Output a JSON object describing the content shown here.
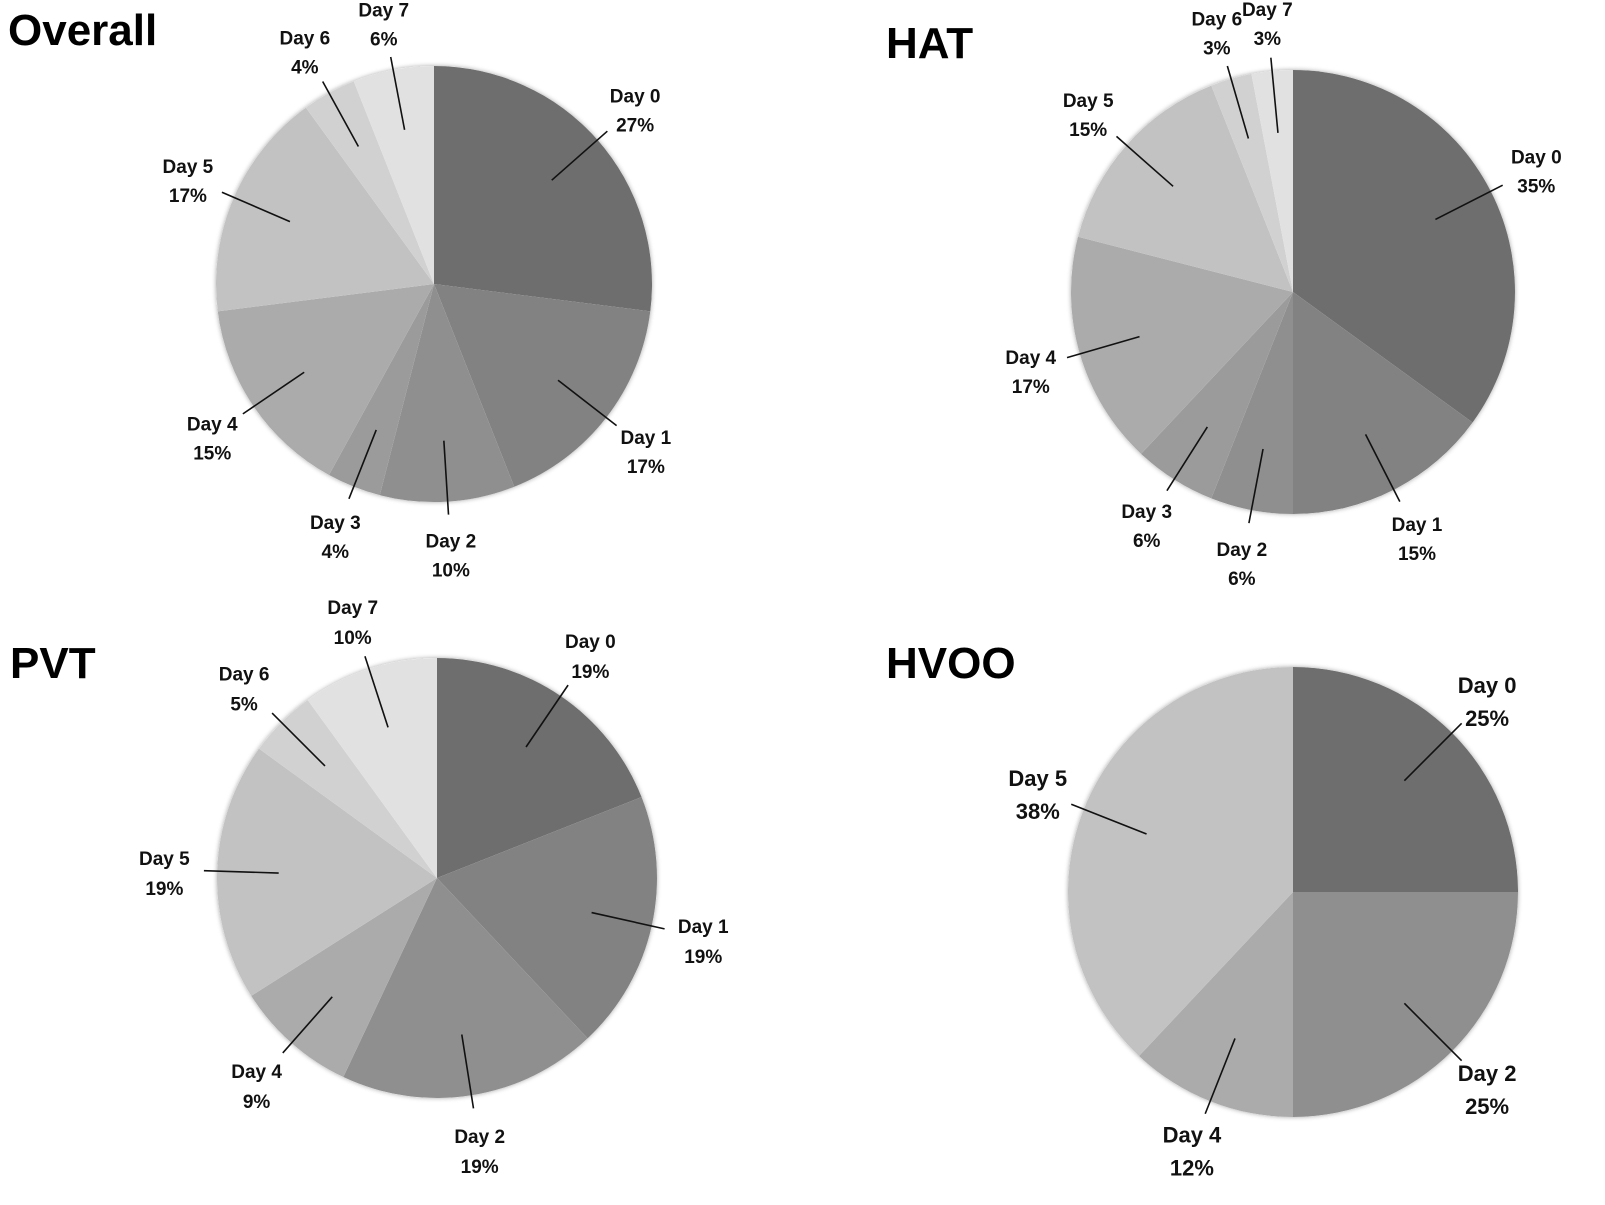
{
  "chart_data": [
    {
      "type": "pie",
      "title": "Overall",
      "slices": [
        {
          "label": "Day 0",
          "percent_label": "27%",
          "value": 27,
          "color": "#6e6e6e"
        },
        {
          "label": "Day 1",
          "percent_label": "17%",
          "value": 17,
          "color": "#828282"
        },
        {
          "label": "Day 2",
          "percent_label": "10%",
          "value": 10,
          "color": "#8f8f8f"
        },
        {
          "label": "Day 3",
          "percent_label": "4%",
          "value": 4,
          "color": "#9b9b9b"
        },
        {
          "label": "Day 4",
          "percent_label": "15%",
          "value": 15,
          "color": "#ababab"
        },
        {
          "label": "Day 5",
          "percent_label": "17%",
          "value": 17,
          "color": "#c2c2c2"
        },
        {
          "label": "Day 6",
          "percent_label": "4%",
          "value": 4,
          "color": "#d1d1d1"
        },
        {
          "label": "Day 7",
          "percent_label": "6%",
          "value": 6,
          "color": "#e1e1e1"
        }
      ]
    },
    {
      "type": "pie",
      "title": "HAT",
      "slices": [
        {
          "label": "Day 0",
          "percent_label": "35%",
          "value": 35,
          "color": "#6e6e6e"
        },
        {
          "label": "Day 1",
          "percent_label": "15%",
          "value": 15,
          "color": "#828282"
        },
        {
          "label": "Day 2",
          "percent_label": "6%",
          "value": 6,
          "color": "#8f8f8f"
        },
        {
          "label": "Day 3",
          "percent_label": "6%",
          "value": 6,
          "color": "#9b9b9b"
        },
        {
          "label": "Day 4",
          "percent_label": "17%",
          "value": 17,
          "color": "#ababab"
        },
        {
          "label": "Day 5",
          "percent_label": "15%",
          "value": 15,
          "color": "#c2c2c2"
        },
        {
          "label": "Day 6",
          "percent_label": "3%",
          "value": 3,
          "color": "#d1d1d1"
        },
        {
          "label": "Day 7",
          "percent_label": "3%",
          "value": 3,
          "color": "#e1e1e1"
        }
      ]
    },
    {
      "type": "pie",
      "title": "PVT",
      "slices": [
        {
          "label": "Day 0",
          "percent_label": "19%",
          "value": 19,
          "color": "#6e6e6e"
        },
        {
          "label": "Day 1",
          "percent_label": "19%",
          "value": 19,
          "color": "#828282"
        },
        {
          "label": "Day 2",
          "percent_label": "19%",
          "value": 19,
          "color": "#8f8f8f"
        },
        {
          "label": "Day 4",
          "percent_label": "9%",
          "value": 9,
          "color": "#ababab"
        },
        {
          "label": "Day 5",
          "percent_label": "19%",
          "value": 19,
          "color": "#c2c2c2"
        },
        {
          "label": "Day 6",
          "percent_label": "5%",
          "value": 5,
          "color": "#d1d1d1"
        },
        {
          "label": "Day 7",
          "percent_label": "10%",
          "value": 10,
          "color": "#e1e1e1"
        }
      ]
    },
    {
      "type": "pie",
      "title": "HVOO",
      "slices": [
        {
          "label": "Day 0",
          "percent_label": "25%",
          "value": 25,
          "color": "#6e6e6e"
        },
        {
          "label": "Day 2",
          "percent_label": "25%",
          "value": 25,
          "color": "#8f8f8f"
        },
        {
          "label": "Day 4",
          "percent_label": "12%",
          "value": 12,
          "color": "#ababab"
        },
        {
          "label": "Day 5",
          "percent_label": "38%",
          "value": 38,
          "color": "#c2c2c2"
        }
      ]
    }
  ]
}
